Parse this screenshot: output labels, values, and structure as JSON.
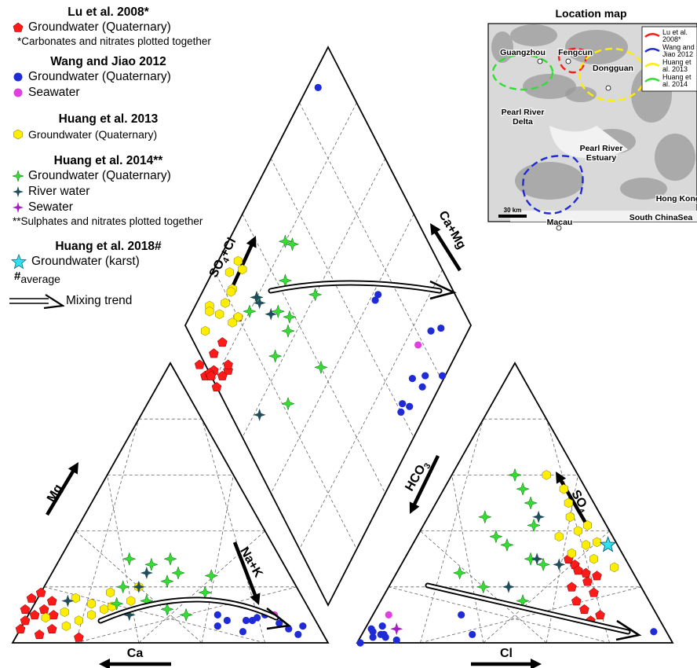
{
  "legend": {
    "lu2008": {
      "title": "Lu et al. 2008*",
      "gw": "Groundwater (Quaternary)",
      "note": "*Carbonates and nitrates plotted together"
    },
    "wang2012": {
      "title": "Wang and Jiao 2012",
      "gw": "Groundwater (Quaternary)",
      "sea": "Seawater"
    },
    "huang2013": {
      "title": "Huang et al. 2013",
      "gw": "Groundwater (Quaternary)"
    },
    "huang2014": {
      "title": "Huang et al. 2014**",
      "gw": "Groundwater (Quaternary)",
      "river": "River water",
      "sew": "Sewater",
      "note": "**Sulphates and nitrates plotted together"
    },
    "huang2018": {
      "title": "Huang et al. 2018#",
      "gw": "Groundwater (karst)",
      "avg_mark": "#",
      "avg_text": "average"
    },
    "mixing": "Mixing trend"
  },
  "colors": {
    "lu": "#ff1a1a",
    "wang": "#1f2bd6",
    "sea": "#e040e0",
    "h13": "#ffee00",
    "h14": "#33dd33",
    "river": "#1f4e5a",
    "sew": "#a020c0",
    "karst": "#33e0f0"
  },
  "chart_data": {
    "type": "scatter",
    "subtype": "Piper diagram",
    "axes": {
      "cation_triangle": {
        "bottom": "Ca",
        "left": "Mg",
        "right": "Na+K"
      },
      "anion_triangle": {
        "bottom": "Cl",
        "left": "HCO3",
        "right": "SO4"
      },
      "diamond": {
        "upper_left": "SO4+Cl",
        "upper_right": "Ca+Mg"
      }
    },
    "series": [
      {
        "name": "Groundwater (Quaternary)",
        "source": "Lu et al. 2008",
        "marker": "pentagon",
        "color": "#ff1a1a",
        "cation": [
          [
            0.1,
            0.88
          ],
          [
            0.05,
            0.85
          ],
          [
            0.12,
            0.9
          ],
          [
            0.08,
            0.92
          ],
          [
            0.15,
            0.8
          ],
          [
            0.03,
            0.9
          ],
          [
            0.18,
            0.82
          ],
          [
            0.1,
            0.82
          ],
          [
            0.05,
            0.95
          ],
          [
            0.02,
            0.78
          ],
          [
            0.12,
            0.84
          ],
          [
            0.16,
            0.86
          ]
        ],
        "anion": [
          [
            0.1,
            0.72
          ],
          [
            0.18,
            0.66
          ],
          [
            0.22,
            0.62
          ],
          [
            0.2,
            0.58
          ],
          [
            0.25,
            0.6
          ],
          [
            0.15,
            0.62
          ],
          [
            0.28,
            0.55
          ],
          [
            0.12,
            0.66
          ],
          [
            0.3,
            0.52
          ],
          [
            0.26,
            0.57
          ],
          [
            0.08,
            0.7
          ],
          [
            0.24,
            0.64
          ]
        ]
      },
      {
        "name": "Groundwater (Quaternary)",
        "source": "Wang and Jiao 2012",
        "marker": "circle",
        "color": "#1f2bd6",
        "cation": [
          [
            0.08,
            0.2
          ],
          [
            0.08,
            0.28
          ],
          [
            0.1,
            0.3
          ],
          [
            0.06,
            0.32
          ],
          [
            0.08,
            0.22
          ],
          [
            0.1,
            0.15
          ],
          [
            0.05,
            0.1
          ],
          [
            0.06,
            0.05
          ],
          [
            0.09,
            0.18
          ],
          [
            0.04,
            0.25
          ],
          [
            0.07,
            0.12
          ],
          [
            0.03,
            0.08
          ]
        ],
        "anion": [
          [
            0.02,
            0.04
          ],
          [
            0.05,
            0.02
          ],
          [
            0.03,
            0.06
          ],
          [
            0.02,
            0.08
          ],
          [
            0.06,
            0.05
          ],
          [
            0.04,
            0.03
          ],
          [
            0.01,
            0.12
          ],
          [
            0.04,
            0.92
          ],
          [
            0.1,
            0.28
          ],
          [
            0.03,
            0.35
          ],
          [
            0.0,
            0.01
          ],
          [
            0.03,
            0.07
          ]
        ]
      },
      {
        "name": "Seawater",
        "source": "Wang and Jiao 2012",
        "marker": "circle",
        "color": "#e040e0",
        "cation": [
          [
            0.1,
            0.12
          ]
        ],
        "anion": [
          [
            0.1,
            0.05
          ]
        ]
      },
      {
        "name": "Groundwater (Quaternary)",
        "source": "Huang et al. 2013",
        "marker": "hexagon",
        "color": "#ffee00",
        "cation": [
          [
            0.15,
            0.55
          ],
          [
            0.12,
            0.65
          ],
          [
            0.18,
            0.6
          ],
          [
            0.1,
            0.7
          ],
          [
            0.08,
            0.75
          ],
          [
            0.14,
            0.68
          ],
          [
            0.2,
            0.5
          ],
          [
            0.06,
            0.8
          ],
          [
            0.16,
            0.72
          ],
          [
            0.11,
            0.78
          ],
          [
            0.13,
            0.62
          ],
          [
            0.09,
            0.85
          ]
        ],
        "anion": [
          [
            0.35,
            0.55
          ],
          [
            0.4,
            0.5
          ],
          [
            0.3,
            0.6
          ],
          [
            0.38,
            0.45
          ],
          [
            0.32,
            0.52
          ],
          [
            0.45,
            0.45
          ],
          [
            0.55,
            0.38
          ],
          [
            0.6,
            0.3
          ],
          [
            0.27,
            0.68
          ],
          [
            0.42,
            0.52
          ],
          [
            0.36,
            0.58
          ],
          [
            0.5,
            0.42
          ]
        ]
      },
      {
        "name": "Groundwater (Quaternary)",
        "source": "Huang et al. 2014",
        "marker": "star4",
        "color": "#33dd33",
        "cation": [
          [
            0.15,
            0.5
          ],
          [
            0.3,
            0.48
          ],
          [
            0.22,
            0.4
          ],
          [
            0.12,
            0.45
          ],
          [
            0.25,
            0.35
          ],
          [
            0.18,
            0.3
          ],
          [
            0.28,
            0.42
          ],
          [
            0.2,
            0.55
          ],
          [
            0.24,
            0.25
          ],
          [
            0.14,
            0.6
          ],
          [
            0.3,
            0.35
          ],
          [
            0.1,
            0.4
          ]
        ],
        "anion": [
          [
            0.3,
            0.4
          ],
          [
            0.2,
            0.3
          ],
          [
            0.35,
            0.3
          ],
          [
            0.28,
            0.45
          ],
          [
            0.25,
            0.2
          ],
          [
            0.42,
            0.35
          ],
          [
            0.5,
            0.3
          ],
          [
            0.55,
            0.25
          ],
          [
            0.15,
            0.45
          ],
          [
            0.38,
            0.25
          ],
          [
            0.45,
            0.18
          ],
          [
            0.6,
            0.2
          ]
        ]
      },
      {
        "name": "River water",
        "source": "Huang et al. 2014",
        "marker": "star4",
        "color": "#1f4e5a",
        "cation": [
          [
            0.2,
            0.5
          ],
          [
            0.1,
            0.58
          ],
          [
            0.25,
            0.45
          ],
          [
            0.15,
            0.75
          ]
        ],
        "anion": [
          [
            0.45,
            0.35
          ],
          [
            0.3,
            0.42
          ],
          [
            0.28,
            0.5
          ],
          [
            0.2,
            0.38
          ]
        ]
      },
      {
        "name": "Sewater",
        "source": "Huang et al. 2014",
        "marker": "star4",
        "color": "#a020c0",
        "cation": [],
        "anion": [
          [
            0.05,
            0.1
          ]
        ]
      },
      {
        "name": "Groundwater (karst)",
        "source": "Huang et al. 2018",
        "marker": "star5",
        "color": "#33e0f0",
        "cation": [],
        "anion": [
          [
            0.35,
            0.62
          ]
        ]
      }
    ]
  },
  "mixing_trend_label": "Mixing trend",
  "inset_map": {
    "title": "Location map",
    "places": {
      "guangzhou": "Guangzhou",
      "fengcun": "Fengcun",
      "dongguan": "Dongguan",
      "prd": "Pearl River\nDelta",
      "pre": "Pearl River\nEstuary",
      "hk": "Hong Kong",
      "macau": "Macau",
      "scs": "South ChinaSea"
    },
    "scale": "30 km",
    "keys": [
      {
        "label": "Lu et al.\n2008*",
        "color": "#ff1a1a"
      },
      {
        "label": "Wang and\nJiao 2012",
        "color": "#1f2bd6"
      },
      {
        "label": "Huang et\nal. 2013",
        "color": "#ffee00"
      },
      {
        "label": "Huang et\nal. 2014",
        "color": "#33dd33"
      }
    ]
  }
}
